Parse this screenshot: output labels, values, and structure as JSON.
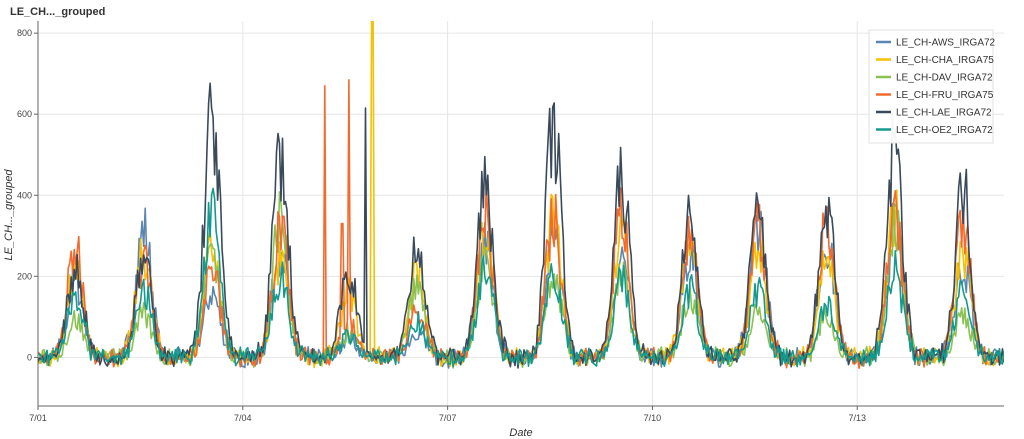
{
  "chart_data": {
    "type": "line",
    "title": "LE_CH..._grouped",
    "xlabel": "Date",
    "ylabel": "LE_CH..._grouped",
    "x_ticks": [
      {
        "day": 0,
        "label": "7/01"
      },
      {
        "day": 3,
        "label": "7/04"
      },
      {
        "day": 6,
        "label": "7/07"
      },
      {
        "day": 9,
        "label": "7/10"
      },
      {
        "day": 12,
        "label": "7/13"
      }
    ],
    "x_range_days": [
      0,
      14.15
    ],
    "y_ticks": [
      0,
      200,
      400,
      600,
      800
    ],
    "ylim": [
      -120,
      830
    ],
    "grid": true,
    "legend_position": "top-right",
    "series": [
      {
        "name": "LE_CH-AWS_IRGA72",
        "color": "#5b86b0",
        "daily_peak": [
          220,
          370,
          190,
          320,
          60,
          80,
          330,
          360,
          300,
          300,
          400,
          340,
          380,
          270
        ],
        "spikes": []
      },
      {
        "name": "LE_CH-CHA_IRGA75",
        "color": "#f5c000",
        "daily_peak": [
          250,
          300,
          320,
          280,
          200,
          230,
          380,
          400,
          360,
          330,
          320,
          300,
          420,
          300
        ],
        "spikes": [
          {
            "day": 4.9,
            "value": 830
          },
          {
            "day": 5.6,
            "value": 230
          }
        ]
      },
      {
        "name": "LE_CH-DAV_IRGA72",
        "color": "#8cc152",
        "daily_peak": [
          110,
          120,
          330,
          410,
          70,
          200,
          300,
          260,
          230,
          190,
          130,
          120,
          400,
          130
        ],
        "spikes": []
      },
      {
        "name": "LE_CH-FRU_IRGA75",
        "color": "#f46a2d",
        "daily_peak": [
          320,
          290,
          260,
          370,
          100,
          150,
          410,
          400,
          420,
          360,
          370,
          380,
          400,
          380
        ],
        "spikes": [
          {
            "day": 4.2,
            "value": 670
          },
          {
            "day": 4.55,
            "value": 685
          },
          {
            "day": 4.45,
            "value": 330
          }
        ]
      },
      {
        "name": "LE_CH-LAE_IRGA72",
        "color": "#3a4a5a",
        "daily_peak": [
          260,
          280,
          700,
          590,
          250,
          340,
          510,
          670,
          520,
          400,
          430,
          430,
          620,
          490
        ],
        "spikes": [
          {
            "day": 4.8,
            "value": 615
          }
        ]
      },
      {
        "name": "LE_CH-OE2_IRGA72",
        "color": "#129a8e",
        "daily_peak": [
          190,
          190,
          410,
          230,
          60,
          100,
          270,
          260,
          220,
          200,
          200,
          160,
          250,
          190
        ],
        "spikes": []
      }
    ]
  }
}
